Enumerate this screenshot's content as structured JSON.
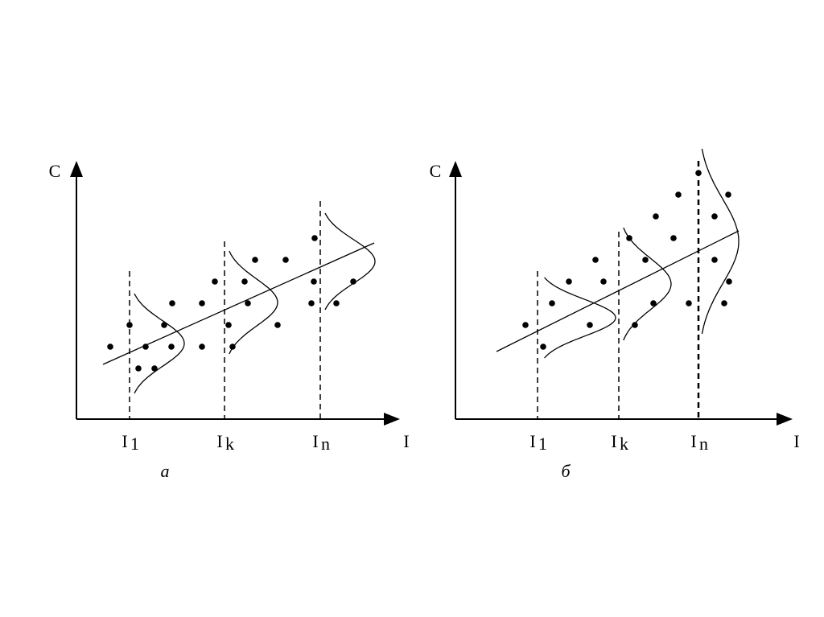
{
  "panels": [
    {
      "y_label": "C",
      "x_label": "I",
      "caption": "а",
      "markers": [
        {
          "base": "I",
          "sub": "1"
        },
        {
          "base": "I",
          "sub": "k"
        },
        {
          "base": "I",
          "sub": "n"
        }
      ]
    },
    {
      "y_label": "C",
      "x_label": "I",
      "caption": "б",
      "markers": [
        {
          "base": "I",
          "sub": "1"
        },
        {
          "base": "I",
          "sub": "k"
        },
        {
          "base": "I",
          "sub": "n"
        }
      ]
    }
  ]
}
